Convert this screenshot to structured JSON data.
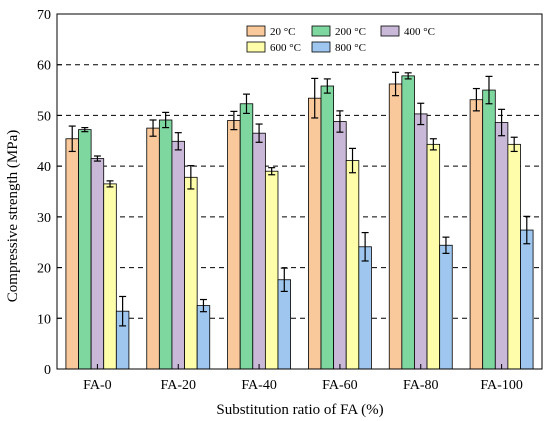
{
  "chart_data": {
    "type": "bar",
    "xlabel": "Substitution ratio of FA (%)",
    "ylabel": "Compressive strength (MPa)",
    "ylim": [
      0,
      70
    ],
    "yticks": [
      0,
      10,
      20,
      30,
      40,
      50,
      60,
      70
    ],
    "grid": "horizontal dashed",
    "legend_placement": "top-center",
    "categories": [
      "FA-0",
      "FA-20",
      "FA-40",
      "FA-60",
      "FA-80",
      "FA-100"
    ],
    "series": [
      {
        "name": "20 °C",
        "color": "#f9c89b",
        "values": [
          45.4,
          47.5,
          49.0,
          53.4,
          56.2,
          53.1
        ],
        "errors": [
          2.5,
          1.6,
          1.8,
          3.9,
          2.3,
          2.2
        ]
      },
      {
        "name": "200 °C",
        "color": "#7fd7a0",
        "values": [
          47.2,
          49.1,
          52.3,
          55.8,
          57.8,
          55.0
        ],
        "errors": [
          0.4,
          1.5,
          1.9,
          1.4,
          0.6,
          2.7
        ]
      },
      {
        "name": "400 °C",
        "color": "#c9b8d8",
        "values": [
          41.5,
          44.9,
          46.5,
          48.8,
          50.3,
          48.6
        ],
        "errors": [
          0.5,
          1.7,
          1.8,
          2.1,
          2.1,
          2.6
        ]
      },
      {
        "name": "600 °C",
        "color": "#fefeaa",
        "values": [
          36.5,
          37.8,
          39.0,
          41.1,
          44.3,
          44.3
        ],
        "errors": [
          0.6,
          2.3,
          0.7,
          2.4,
          1.1,
          1.4
        ]
      },
      {
        "name": "800 °C",
        "color": "#9ec6ee",
        "values": [
          11.4,
          12.5,
          17.6,
          24.1,
          24.4,
          27.4
        ],
        "errors": [
          2.9,
          1.2,
          2.3,
          2.8,
          1.6,
          2.7
        ]
      }
    ]
  }
}
